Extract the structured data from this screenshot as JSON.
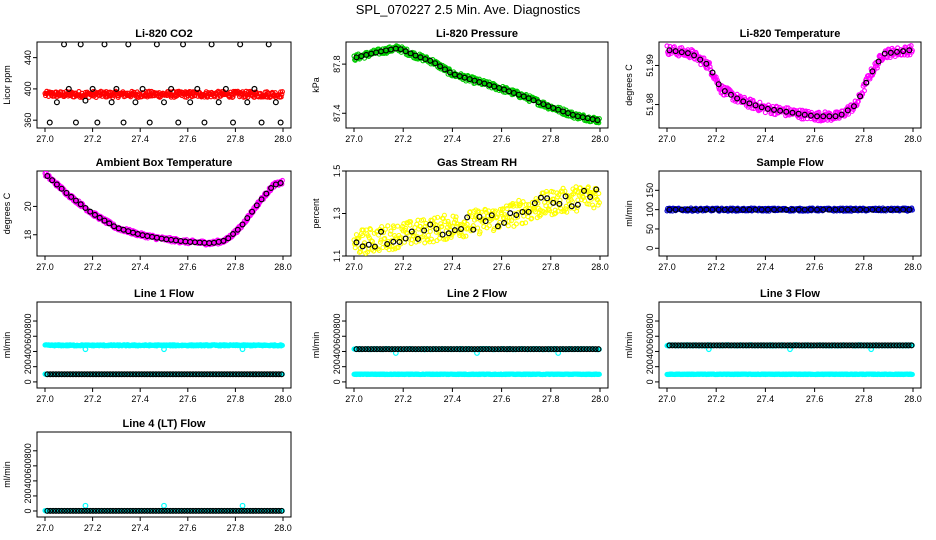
{
  "title": "SPL_070227  2.5 Min. Ave. Diagnostics",
  "chart_data": [
    {
      "type": "scatter",
      "title": "Li-820 CO2",
      "ylabel": "Licor ppm",
      "xlim": [
        27.0,
        28.0
      ],
      "ylim": [
        350,
        460
      ],
      "yticks": [
        "360",
        "400",
        "440"
      ],
      "yticks_values": [
        360,
        400,
        440
      ],
      "xticks": [
        "27.0",
        "27.2",
        "27.4",
        "27.6",
        "27.8",
        "28.0"
      ],
      "series": [
        {
          "name": "CO2 dense",
          "color": "#ff0000",
          "shape": "dense",
          "level": 393,
          "spread": 4
        },
        {
          "name": "CO2 averages",
          "color": "#000000",
          "shape": "ring",
          "points": [
            [
              27.02,
              357
            ],
            [
              27.05,
              383
            ],
            [
              27.08,
              457
            ],
            [
              27.1,
              400
            ],
            [
              27.13,
              357
            ],
            [
              27.15,
              457
            ],
            [
              27.17,
              385
            ],
            [
              27.2,
              400
            ],
            [
              27.22,
              357
            ],
            [
              27.25,
              457
            ],
            [
              27.28,
              383
            ],
            [
              27.3,
              400
            ],
            [
              27.33,
              357
            ],
            [
              27.35,
              457
            ],
            [
              27.38,
              383
            ],
            [
              27.41,
              400
            ],
            [
              27.44,
              357
            ],
            [
              27.47,
              457
            ],
            [
              27.5,
              383
            ],
            [
              27.53,
              400
            ],
            [
              27.56,
              357
            ],
            [
              27.58,
              457
            ],
            [
              27.61,
              383
            ],
            [
              27.64,
              400
            ],
            [
              27.67,
              357
            ],
            [
              27.7,
              457
            ],
            [
              27.73,
              383
            ],
            [
              27.76,
              400
            ],
            [
              27.79,
              357
            ],
            [
              27.82,
              457
            ],
            [
              27.85,
              383
            ],
            [
              27.88,
              400
            ],
            [
              27.91,
              357
            ],
            [
              27.94,
              457
            ],
            [
              27.97,
              383
            ],
            [
              27.99,
              357
            ]
          ]
        }
      ]
    },
    {
      "type": "scatter",
      "title": "Li-820 Pressure",
      "ylabel": "kPa",
      "xlim": [
        27.0,
        28.0
      ],
      "ylim": [
        87.28,
        87.98
      ],
      "yticks": [
        "87.4",
        "87.8"
      ],
      "yticks_values": [
        87.4,
        87.8
      ],
      "xticks": [
        "27.0",
        "27.2",
        "27.4",
        "27.6",
        "27.8",
        "28.0"
      ],
      "series": [
        {
          "name": "Pressure dense",
          "color": "#00cc00",
          "shape": "curve",
          "spread": 0.025,
          "curve": [
            [
              27.0,
              87.85
            ],
            [
              27.1,
              87.9
            ],
            [
              27.18,
              87.93
            ],
            [
              27.25,
              87.87
            ],
            [
              27.32,
              87.82
            ],
            [
              27.4,
              87.72
            ],
            [
              27.5,
              87.66
            ],
            [
              27.6,
              87.6
            ],
            [
              27.7,
              87.53
            ],
            [
              27.8,
              87.45
            ],
            [
              27.9,
              87.38
            ],
            [
              28.0,
              87.34
            ]
          ]
        },
        {
          "name": "Pressure averages",
          "color": "#000000",
          "shape": "ring-on-curve",
          "step": 0.02
        }
      ]
    },
    {
      "type": "scatter",
      "title": "Li-820 Temperature",
      "ylabel": "degrees C",
      "xlim": [
        27.0,
        28.0
      ],
      "ylim": [
        51.974,
        51.996
      ],
      "yticks": [
        "51.98",
        "51.99"
      ],
      "yticks_values": [
        51.98,
        51.99
      ],
      "xticks": [
        "27.0",
        "27.2",
        "27.4",
        "27.6",
        "27.8",
        "28.0"
      ],
      "series": [
        {
          "name": "Temperature dense",
          "color": "#ff00ff",
          "shape": "curve",
          "spread": 0.0012,
          "curve": [
            [
              27.0,
              51.994
            ],
            [
              27.1,
              51.993
            ],
            [
              27.17,
              51.99
            ],
            [
              27.22,
              51.984
            ],
            [
              27.3,
              51.981
            ],
            [
              27.4,
              51.979
            ],
            [
              27.5,
              51.978
            ],
            [
              27.6,
              51.977
            ],
            [
              27.7,
              51.977
            ],
            [
              27.77,
              51.98
            ],
            [
              27.82,
              51.987
            ],
            [
              27.88,
              51.993
            ],
            [
              28.0,
              51.994
            ]
          ]
        },
        {
          "name": "Temperature averages",
          "color": "#000000",
          "shape": "ring-on-curve",
          "step": 0.025
        }
      ]
    },
    {
      "type": "scatter",
      "title": "Ambient Box Temperature",
      "ylabel": "degrees C",
      "xlim": [
        27.0,
        28.0
      ],
      "ylim": [
        16.5,
        22.5
      ],
      "yticks": [
        "18",
        "20"
      ],
      "yticks_values": [
        18,
        20
      ],
      "xticks": [
        "27.0",
        "27.2",
        "27.4",
        "27.6",
        "27.8",
        "28.0"
      ],
      "series": [
        {
          "name": "Box temp dense",
          "color": "#ff00ff",
          "shape": "curve",
          "spread": 0.15,
          "curve": [
            [
              27.0,
              22.3
            ],
            [
              27.1,
              20.8
            ],
            [
              27.2,
              19.5
            ],
            [
              27.3,
              18.5
            ],
            [
              27.4,
              18.0
            ],
            [
              27.5,
              17.7
            ],
            [
              27.6,
              17.5
            ],
            [
              27.7,
              17.4
            ],
            [
              27.76,
              17.6
            ],
            [
              27.82,
              18.5
            ],
            [
              27.9,
              20.3
            ],
            [
              27.96,
              21.5
            ],
            [
              28.0,
              21.7
            ]
          ]
        },
        {
          "name": "Box temp averages",
          "color": "#000000",
          "shape": "ring-on-curve",
          "step": 0.02
        }
      ]
    },
    {
      "type": "scatter",
      "title": "Gas Stream RH",
      "ylabel": "percent",
      "xlim": [
        27.0,
        28.0
      ],
      "ylim": [
        1.1,
        1.5
      ],
      "yticks": [
        "1.1",
        "1.3",
        "1.5"
      ],
      "yticks_values": [
        1.1,
        1.3,
        1.5
      ],
      "xticks": [
        "27.0",
        "27.2",
        "27.4",
        "27.6",
        "27.8",
        "28.0"
      ],
      "series": [
        {
          "name": "RH dense",
          "color": "#ffff00",
          "shape": "curve",
          "spread": 0.06,
          "curve": [
            [
              27.0,
              1.16
            ],
            [
              27.2,
              1.2
            ],
            [
              27.4,
              1.24
            ],
            [
              27.6,
              1.28
            ],
            [
              27.8,
              1.35
            ],
            [
              28.0,
              1.39
            ]
          ]
        },
        {
          "name": "RH averages",
          "color": "#000000",
          "shape": "ring-on-curve",
          "step": 0.025,
          "jitter": 0.04
        }
      ]
    },
    {
      "type": "scatter",
      "title": "Sample Flow",
      "ylabel": "ml/min",
      "xlim": [
        27.0,
        28.0
      ],
      "ylim": [
        -20,
        200
      ],
      "yticks": [
        "0",
        "50",
        "100",
        "150"
      ],
      "yticks_values": [
        0,
        50,
        100,
        150
      ],
      "xticks": [
        "27.0",
        "27.2",
        "27.4",
        "27.6",
        "27.8",
        "28.0"
      ],
      "series": [
        {
          "name": "Sample flow dense",
          "color": "#0000cc",
          "shape": "dense",
          "level": 100,
          "spread": 4
        },
        {
          "name": "Sample flow averages",
          "color": "#000000",
          "shape": "ring-flat",
          "level": 100,
          "step": 0.025
        }
      ]
    },
    {
      "type": "scatter",
      "title": "Line 1 Flow",
      "ylabel": "ml/min",
      "xlim": [
        27.0,
        28.0
      ],
      "ylim": [
        -80,
        1050
      ],
      "yticks": [
        "0",
        "200",
        "400",
        "600",
        "800"
      ],
      "yticks_values": [
        0,
        200,
        400,
        600,
        800
      ],
      "xticks": [
        "27.0",
        "27.2",
        "27.4",
        "27.6",
        "27.8",
        "28.0"
      ],
      "series": [
        {
          "name": "Line 1 high",
          "color": "#00ffff",
          "shape": "dense",
          "level": 480,
          "spread": 8,
          "outliers": [
            [
              27.17,
              430
            ],
            [
              27.5,
              430
            ],
            [
              27.83,
              430
            ]
          ]
        },
        {
          "name": "Line 1 low",
          "color": "#00ffff",
          "shape": "dense",
          "level": 100,
          "spread": 4
        },
        {
          "name": "Line 1 averages",
          "color": "#000000",
          "shape": "ring-flat",
          "level": 100,
          "step": 0.012
        }
      ]
    },
    {
      "type": "scatter",
      "title": "Line 2 Flow",
      "ylabel": "ml/min",
      "xlim": [
        27.0,
        28.0
      ],
      "ylim": [
        -80,
        1050
      ],
      "yticks": [
        "0",
        "200",
        "400",
        "600",
        "800"
      ],
      "yticks_values": [
        0,
        200,
        400,
        600,
        800
      ],
      "xticks": [
        "27.0",
        "27.2",
        "27.4",
        "27.6",
        "27.8",
        "28.0"
      ],
      "series": [
        {
          "name": "Line 2 high",
          "color": "#00ffff",
          "shape": "dense",
          "level": 430,
          "spread": 8,
          "outliers": [
            [
              27.17,
              380
            ],
            [
              27.5,
              380
            ],
            [
              27.83,
              380
            ]
          ]
        },
        {
          "name": "Line 2 low",
          "color": "#00ffff",
          "shape": "dense",
          "level": 100,
          "spread": 4
        },
        {
          "name": "Line 2 averages",
          "color": "#000000",
          "shape": "ring-flat",
          "level": 430,
          "step": 0.012
        }
      ]
    },
    {
      "type": "scatter",
      "title": "Line 3 Flow",
      "ylabel": "ml/min",
      "xlim": [
        27.0,
        28.0
      ],
      "ylim": [
        -80,
        1050
      ],
      "yticks": [
        "0",
        "200",
        "400",
        "600",
        "800"
      ],
      "yticks_values": [
        0,
        200,
        400,
        600,
        800
      ],
      "xticks": [
        "27.0",
        "27.2",
        "27.4",
        "27.6",
        "27.8",
        "28.0"
      ],
      "series": [
        {
          "name": "Line 3 high",
          "color": "#00ffff",
          "shape": "dense",
          "level": 480,
          "spread": 8,
          "outliers": [
            [
              27.17,
              430
            ],
            [
              27.5,
              430
            ],
            [
              27.83,
              430
            ]
          ]
        },
        {
          "name": "Line 3 low",
          "color": "#00ffff",
          "shape": "dense",
          "level": 100,
          "spread": 4
        },
        {
          "name": "Line 3 averages",
          "color": "#000000",
          "shape": "ring-flat",
          "level": 480,
          "step": 0.012
        }
      ]
    },
    {
      "type": "scatter",
      "title": "Line 4 (LT) Flow",
      "ylabel": "ml/min",
      "xlim": [
        27.0,
        28.0
      ],
      "ylim": [
        -80,
        1050
      ],
      "yticks": [
        "0",
        "200",
        "400",
        "600",
        "800"
      ],
      "yticks_values": [
        0,
        200,
        400,
        600,
        800
      ],
      "xticks": [
        "27.0",
        "27.2",
        "27.4",
        "27.6",
        "27.8",
        "28.0"
      ],
      "series": [
        {
          "name": "Line 4 dense",
          "color": "#00ffff",
          "shape": "dense",
          "level": 2,
          "spread": 4,
          "outliers": [
            [
              27.17,
              70
            ],
            [
              27.5,
              70
            ],
            [
              27.83,
              70
            ]
          ]
        },
        {
          "name": "Line 4 averages",
          "color": "#000000",
          "shape": "ring-flat",
          "level": 2,
          "step": 0.012
        }
      ]
    }
  ]
}
